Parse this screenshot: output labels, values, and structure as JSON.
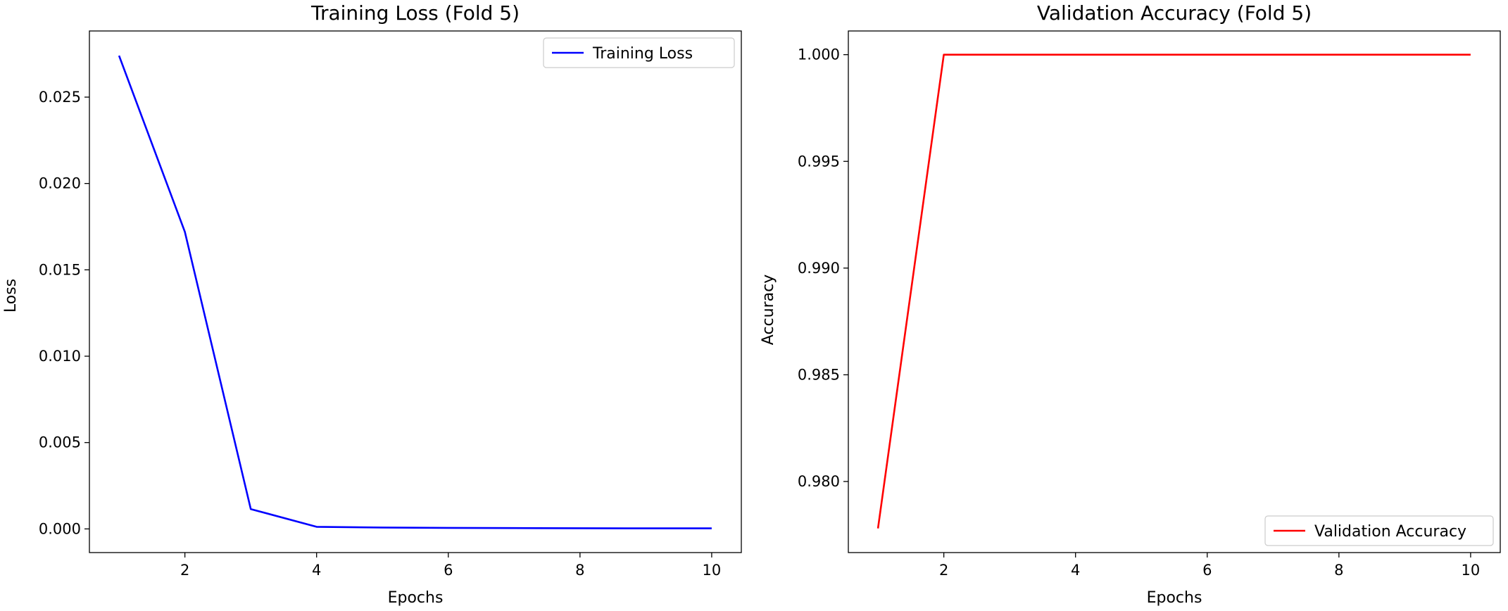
{
  "chart_data": [
    {
      "type": "line",
      "title": "Training Loss (Fold 5)",
      "xlabel": "Epochs",
      "ylabel": "Loss",
      "xlim": [
        0.55,
        10.45
      ],
      "ylim": [
        -0.00137,
        0.02883
      ],
      "xticks": [
        2,
        4,
        6,
        8,
        10
      ],
      "xtick_labels": [
        "2",
        "4",
        "6",
        "8",
        "10"
      ],
      "yticks": [
        0.0,
        0.005,
        0.01,
        0.015,
        0.02,
        0.025
      ],
      "ytick_labels": [
        "0.000",
        "0.005",
        "0.010",
        "0.015",
        "0.020",
        "0.025"
      ],
      "grid": false,
      "legend": {
        "position": "upper right"
      },
      "series": [
        {
          "name": "Training Loss",
          "color": "#0000ff",
          "x": [
            1,
            2,
            3,
            4,
            5,
            6,
            7,
            8,
            9,
            10
          ],
          "values": [
            0.0274,
            0.0172,
            0.00115,
            0.00012,
            8e-05,
            6e-05,
            5e-05,
            4e-05,
            3e-05,
            3e-05
          ]
        }
      ]
    },
    {
      "type": "line",
      "title": "Validation Accuracy (Fold 5)",
      "xlabel": "Epochs",
      "ylabel": "Accuracy",
      "xlim": [
        0.55,
        10.45
      ],
      "ylim": [
        0.97667,
        1.00111
      ],
      "xticks": [
        2,
        4,
        6,
        8,
        10
      ],
      "xtick_labels": [
        "2",
        "4",
        "6",
        "8",
        "10"
      ],
      "yticks": [
        0.98,
        0.985,
        0.99,
        0.995,
        1.0
      ],
      "ytick_labels": [
        "0.980",
        "0.985",
        "0.990",
        "0.995",
        "1.000"
      ],
      "grid": false,
      "legend": {
        "position": "lower right"
      },
      "series": [
        {
          "name": "Validation Accuracy",
          "color": "#ff0000",
          "x": [
            1,
            2,
            3,
            4,
            5,
            6,
            7,
            8,
            9,
            10
          ],
          "values": [
            0.9778,
            1.0,
            1.0,
            1.0,
            1.0,
            1.0,
            1.0,
            1.0,
            1.0,
            1.0
          ]
        }
      ]
    }
  ]
}
